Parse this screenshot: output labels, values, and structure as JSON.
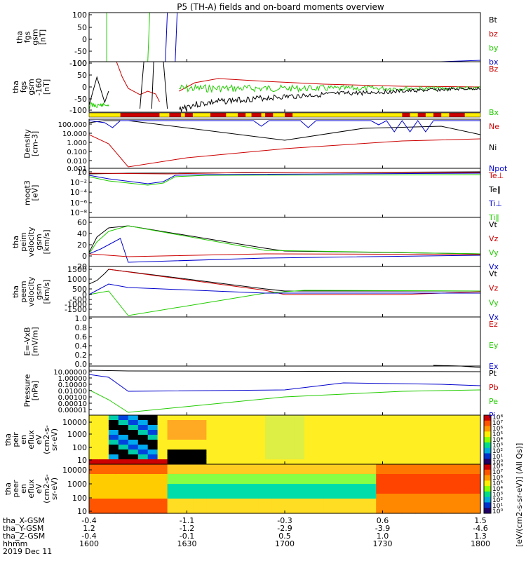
{
  "title": "P5 (TH-A) fields and on-board moments overview",
  "colors": {
    "black": "#000000",
    "red": "#cc0000",
    "green": "#22cc00",
    "blue": "#0000cc",
    "yellow": "#ffee00"
  },
  "chart_data": {
    "type": "line",
    "x_ticks": [
      "1600",
      "1630",
      "1700",
      "1730",
      "1800"
    ],
    "x_range": [
      1600,
      1800
    ],
    "ephemeris": [
      {
        "label": "tha_X-GSM",
        "values": [
          "-0.4",
          "-1.1",
          "-0.3",
          "0.6",
          "1.5"
        ]
      },
      {
        "label": "tha_Y-GSM",
        "values": [
          "1.2",
          "-1.2",
          "-2.9",
          "-3.9",
          "-4.6"
        ]
      },
      {
        "label": "tha_Z-GSM",
        "values": [
          "-0.4",
          "-0.1",
          "0.5",
          "1.0",
          "1.3"
        ]
      },
      {
        "label": "hhmm",
        "values": [
          "1600",
          "1630",
          "1700",
          "1730",
          "1800"
        ]
      }
    ],
    "date": "2019 Dec 11",
    "panels": [
      {
        "id": "fgs1",
        "ylabel": [
          "tha",
          "fgs",
          "gsm",
          "[nT]"
        ],
        "ticks": [
          "100",
          "50",
          "0",
          "-50",
          "-100"
        ],
        "legend": [
          {
            "name": "Bt",
            "color": "black"
          },
          {
            "name": "bz",
            "color": "red"
          },
          {
            "name": "by",
            "color": "green"
          },
          {
            "name": "bx",
            "color": "blue"
          }
        ]
      },
      {
        "id": "fgs2",
        "ylabel": [
          "tha",
          "fgs",
          "gsm",
          "-160",
          "[nT]"
        ],
        "ticks": [
          "100",
          "50",
          "0",
          "-50",
          "-100"
        ],
        "legend": [
          {
            "name": "Bz",
            "color": "red"
          },
          {
            "name": "Bx",
            "color": "green"
          }
        ]
      },
      {
        "id": "density",
        "ylabel": [
          "Density",
          "[cm-3]"
        ],
        "ticks": [
          "100.000",
          "10.000",
          "1.000",
          "0.100",
          "0.010",
          "0.001"
        ],
        "legend": [
          {
            "name": "Ne",
            "color": "red"
          },
          {
            "name": "Ni",
            "color": "black"
          },
          {
            "name": "Npot",
            "color": "blue"
          }
        ]
      },
      {
        "id": "temp",
        "ylabel": [
          "moqt3",
          "[eV]"
        ],
        "ticks": [
          "10",
          "10⁻²",
          "10⁻⁴",
          "10⁻⁶",
          "10⁻⁸"
        ],
        "legend": [
          {
            "name": "Te⊥",
            "color": "red"
          },
          {
            "name": "Te∥",
            "color": "black"
          },
          {
            "name": "Ti⊥",
            "color": "blue"
          },
          {
            "name": "Ti∥",
            "color": "green"
          }
        ]
      },
      {
        "id": "peim",
        "ylabel": [
          "tha",
          "peim",
          "velocity",
          "gsm",
          "[km/s]"
        ],
        "ticks": [
          "60",
          "40",
          "20",
          "0",
          "-20"
        ],
        "legend": [
          {
            "name": "Vt",
            "color": "black"
          },
          {
            "name": "Vz",
            "color": "red"
          },
          {
            "name": "Vy",
            "color": "green"
          },
          {
            "name": "Vx",
            "color": "blue"
          }
        ]
      },
      {
        "id": "peem",
        "ylabel": [
          "tha",
          "peem",
          "velocity",
          "gsm",
          "[km/s]"
        ],
        "ticks": [
          "1500",
          "1000",
          "500",
          "0",
          "-500",
          "-1000",
          "-1500"
        ],
        "legend": [
          {
            "name": "Vt",
            "color": "black"
          },
          {
            "name": "Vz",
            "color": "red"
          },
          {
            "name": "Vy",
            "color": "green"
          },
          {
            "name": "Vx",
            "color": "blue"
          }
        ]
      },
      {
        "id": "efield",
        "ylabel": [
          "E=-VxB",
          "[mV/m]"
        ],
        "ticks": [
          "1.0",
          "0.8",
          "0.6",
          "0.4",
          "0.2",
          "0.0"
        ],
        "legend": [
          {
            "name": "Ez",
            "color": "red"
          },
          {
            "name": "Ey",
            "color": "green"
          },
          {
            "name": "Ex",
            "color": "blue"
          }
        ]
      },
      {
        "id": "pressure",
        "ylabel": [
          "Pressure",
          "[nPa]"
        ],
        "ticks": [
          "10.00000",
          "1.00000",
          "0.10000",
          "0.01000",
          "0.00100",
          "0.00010",
          "0.00001"
        ],
        "legend": [
          {
            "name": "Pt",
            "color": "black"
          },
          {
            "name": "Pb",
            "color": "red"
          },
          {
            "name": "Pe",
            "color": "green"
          },
          {
            "name": "Pi",
            "color": "blue"
          }
        ]
      },
      {
        "id": "peir",
        "ylabel": [
          "tha",
          "peir",
          "en",
          "eflux",
          "eV",
          "(cm2-s-",
          "sr-eV)"
        ],
        "ticks": [
          "10000",
          "1000",
          "100",
          "10"
        ]
      },
      {
        "id": "peer",
        "ylabel": [
          "tha",
          "peer",
          "en",
          "eflux",
          "eV",
          "(cm2-s-",
          "sr-eV)"
        ],
        "ticks": [
          "10000",
          "1000",
          "100",
          "10"
        ]
      }
    ],
    "colorbar": {
      "label": "[eV/(cm2-s-sr-eV)] (All Qs)]",
      "peir_ticks": [
        "10⁸",
        "10⁷",
        "10⁶",
        "10⁵",
        "10⁴",
        "10³",
        "10²",
        "10¹",
        "10⁰"
      ],
      "peer_ticks": [
        "10⁸",
        "10⁷",
        "10⁶",
        "10⁵",
        "10⁴",
        "10³",
        "10²",
        "10¹",
        "10⁰"
      ]
    }
  }
}
